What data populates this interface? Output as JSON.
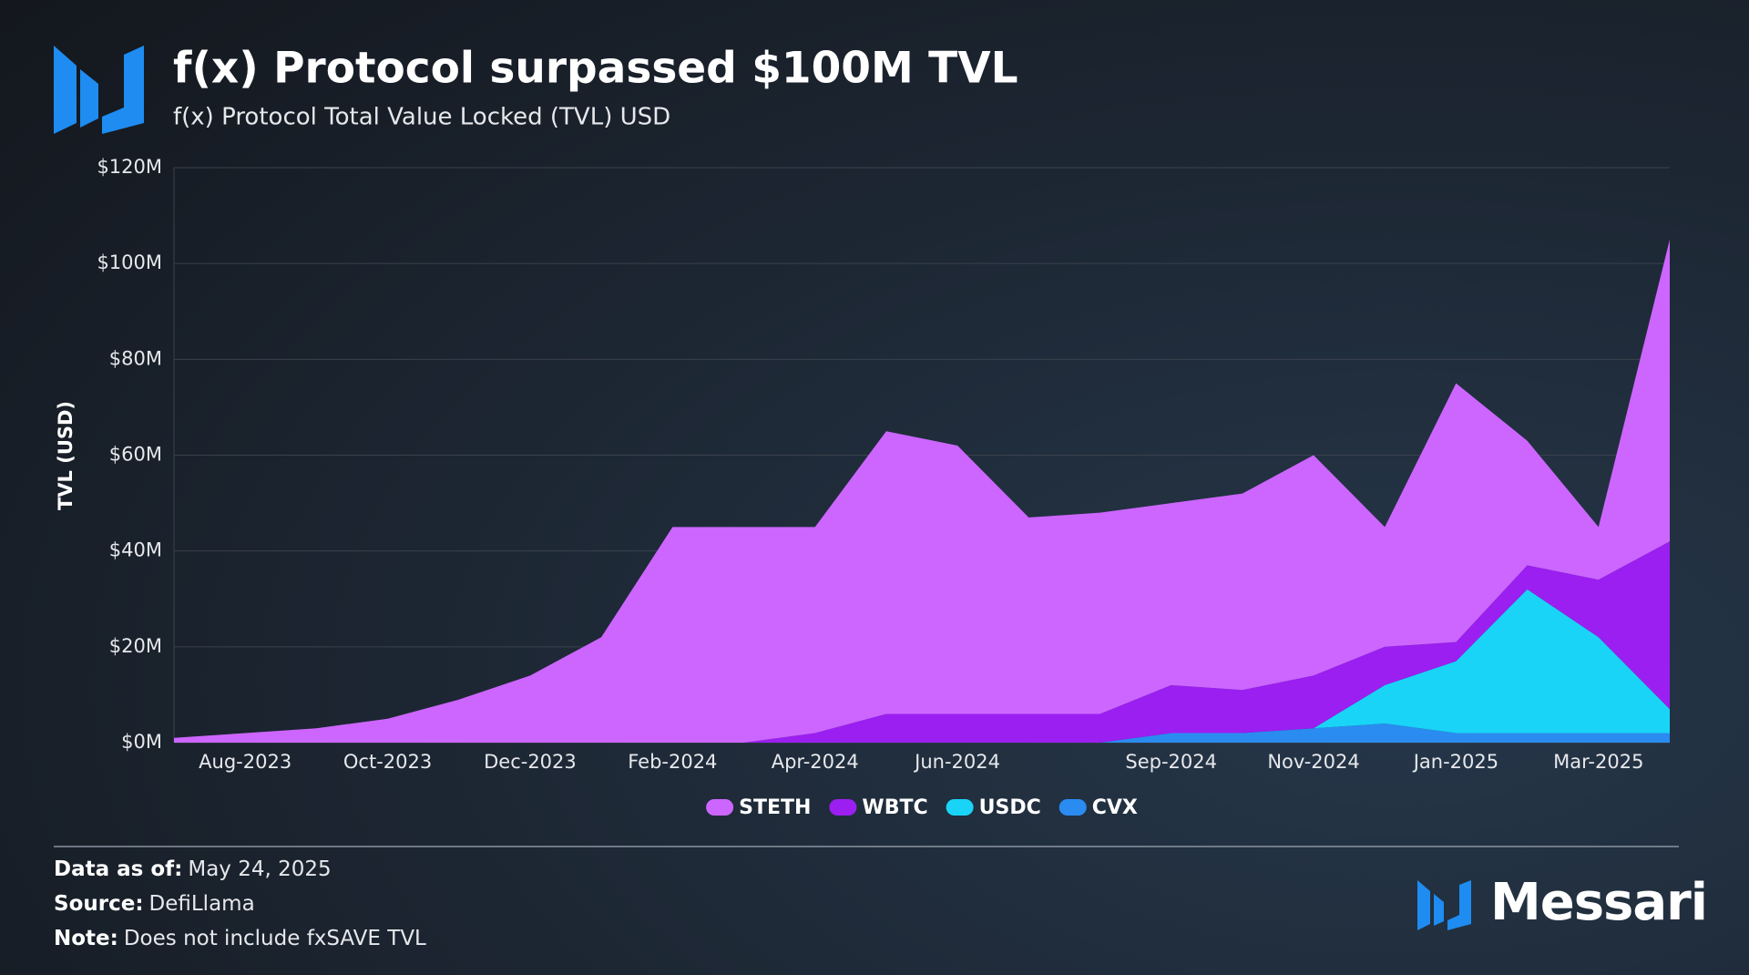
{
  "brand": "Messari",
  "footer": [
    {
      "label": "Data as of:",
      "text": "May 24, 2025"
    },
    {
      "label": "Source:",
      "text": "DefiLlama"
    },
    {
      "label": "Note:",
      "text": "Does not include fxSAVE TVL"
    }
  ],
  "chart_data": {
    "type": "area",
    "stacked": true,
    "title": "f(x) Protocol surpassed $100M TVL",
    "subtitle": "f(x) Protocol Total Value Locked (TVL) USD",
    "y_label": "TVL (USD)",
    "x": [
      "Jul-2023",
      "Aug-2023",
      "Sep-2023",
      "Oct-2023",
      "Nov-2023",
      "Dec-2023",
      "Jan-2024",
      "Feb-2024",
      "Mar-2024",
      "Apr-2024",
      "May-2024",
      "Jun-2024",
      "Jul-2024",
      "Aug-2024",
      "Sep-2024",
      "Oct-2024",
      "Nov-2024",
      "Dec-2024",
      "Jan-2025",
      "Feb-2025",
      "Mar-2025",
      "Apr-2025"
    ],
    "xticks": [
      "Aug-2023",
      "Oct-2023",
      "Dec-2023",
      "Feb-2024",
      "Apr-2024",
      "Jun-2024",
      "Sep-2024",
      "Nov-2024",
      "Jan-2025",
      "Mar-2025"
    ],
    "series": [
      {
        "name": "STETH",
        "color": "#cc66ff",
        "values": [
          1,
          2,
          3,
          5,
          9,
          14,
          22,
          45,
          45,
          43,
          59,
          56,
          41,
          42,
          38,
          41,
          46,
          25,
          54,
          26,
          11,
          63
        ]
      },
      {
        "name": "WBTC",
        "color": "#9b1ff0",
        "values": [
          0,
          0,
          0,
          0,
          0,
          0,
          0,
          0,
          0,
          2,
          6,
          6,
          6,
          6,
          10,
          9,
          11,
          8,
          4,
          5,
          12,
          35
        ]
      },
      {
        "name": "USDC",
        "color": "#19d4f7",
        "values": [
          0,
          0,
          0,
          0,
          0,
          0,
          0,
          0,
          0,
          0,
          0,
          0,
          0,
          0,
          0,
          0,
          0,
          8,
          15,
          30,
          20,
          5
        ]
      },
      {
        "name": "CVX",
        "color": "#2a8cf0",
        "values": [
          0,
          0,
          0,
          0,
          0,
          0,
          0,
          0,
          0,
          0,
          0,
          0,
          0,
          0,
          2,
          2,
          3,
          4,
          2,
          2,
          2,
          2
        ]
      }
    ],
    "ylim": [
      0,
      120
    ],
    "yticks": [
      {
        "value": 0,
        "label": "$0M"
      },
      {
        "value": 20,
        "label": "$20M"
      },
      {
        "value": 40,
        "label": "$40M"
      },
      {
        "value": 60,
        "label": "$60M"
      },
      {
        "value": 80,
        "label": "$80M"
      },
      {
        "value": 100,
        "label": "$100M"
      },
      {
        "value": 120,
        "label": "$120M"
      }
    ],
    "grid": true
  }
}
